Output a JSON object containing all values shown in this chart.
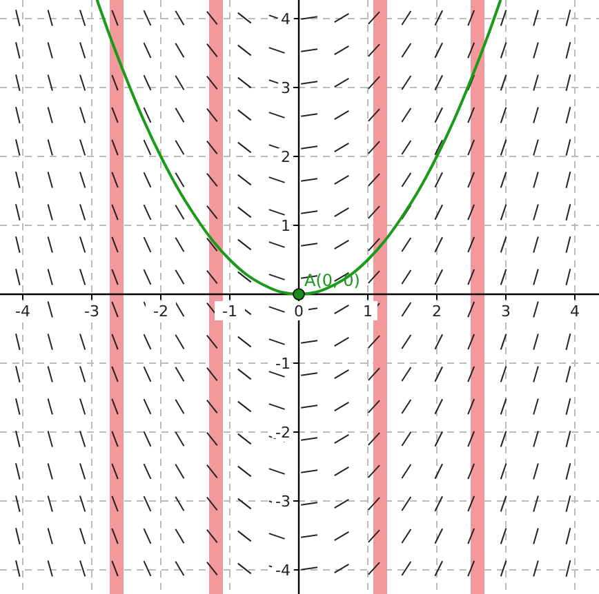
{
  "chart_data": {
    "type": "line",
    "xlim": [
      -4.33,
      4.35
    ],
    "ylim": [
      -4.35,
      4.27
    ],
    "xticks": [
      -4,
      -3,
      -2,
      -1,
      0,
      1,
      2,
      3,
      4
    ],
    "yticks": [
      -4,
      -3,
      -2,
      -1,
      1,
      2,
      3,
      4
    ],
    "grid": true,
    "series": [
      {
        "color": "#1a9a1a",
        "x": [
          -2.92,
          -2.75,
          -2.5,
          -2.25,
          -2,
          -1.75,
          -1.5,
          -1.25,
          -1,
          -0.75,
          -0.5,
          -0.25,
          0,
          0.25,
          0.5,
          0.75,
          1,
          1.25,
          1.5,
          1.75,
          2,
          2.25,
          2.5,
          2.75,
          2.92
        ],
        "values": [
          4.26,
          3.78,
          3.13,
          2.53,
          2,
          1.53,
          1.13,
          0.78,
          0.5,
          0.28,
          0.13,
          0.03,
          0,
          0.03,
          0.13,
          0.28,
          0.5,
          0.78,
          1.13,
          1.53,
          2,
          2.53,
          3.13,
          3.78,
          4.26
        ]
      },
      {
        "type": "scatter",
        "marker": "circle",
        "color": "#1a8a1a",
        "x": [
          0
        ],
        "values": [
          0
        ]
      }
    ],
    "bands": [
      {
        "axis": "x",
        "from": -2.74,
        "to": -2.54,
        "color": "#f4999b"
      },
      {
        "axis": "x",
        "from": -1.3,
        "to": -1.1,
        "color": "#f4999b"
      },
      {
        "axis": "x",
        "from": 1.08,
        "to": 1.28,
        "color": "#f4999b"
      },
      {
        "axis": "x",
        "from": 2.49,
        "to": 2.69,
        "color": "#f4999b"
      }
    ],
    "annotations": [
      {
        "text": "A(0, 0)",
        "x": 0,
        "y": 0
      }
    ]
  }
}
